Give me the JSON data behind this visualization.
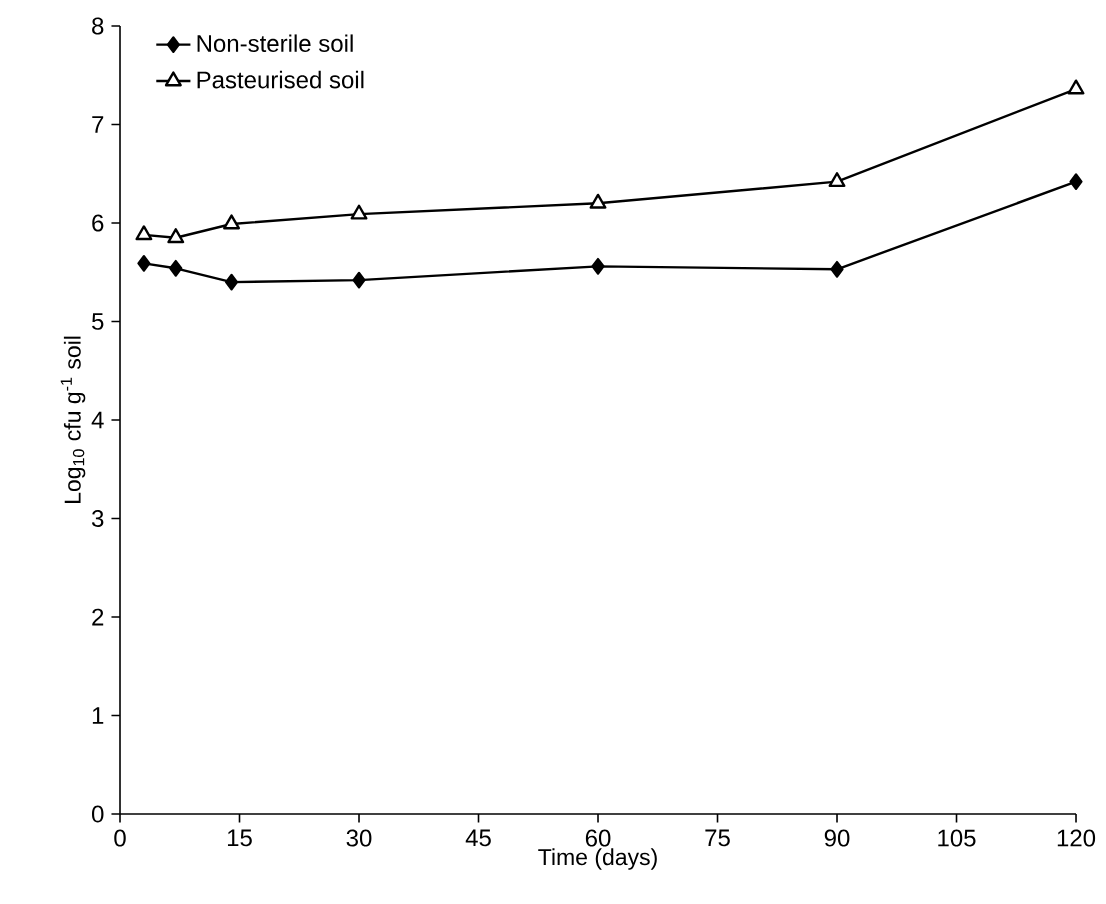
{
  "chart_data": {
    "type": "line",
    "xlabel": "Time (days)",
    "ylabel": "Log$_{10}$ cfu g$^{-1}$ soil",
    "xlim": [
      0,
      120
    ],
    "xticks": [
      0,
      15,
      30,
      45,
      60,
      75,
      90,
      105,
      120
    ],
    "ylim": [
      0,
      8
    ],
    "yticks": [
      0,
      1,
      2,
      3,
      4,
      5,
      6,
      7,
      8
    ],
    "legend": "top left",
    "grid": false,
    "series": [
      {
        "name": "Non-sterile soil",
        "color": "#000000",
        "marker": "diamond",
        "x": [
          3,
          7,
          14,
          30,
          60,
          90,
          120
        ],
        "values": [
          5.59,
          5.54,
          5.4,
          5.42,
          5.56,
          5.53,
          6.42
        ]
      },
      {
        "name": "Pasteurised soil",
        "color": "#000000",
        "marker": "triangle",
        "x": [
          3,
          7,
          14,
          30,
          60,
          90,
          120
        ],
        "values": [
          5.88,
          5.85,
          5.99,
          6.09,
          6.2,
          6.42,
          7.36
        ]
      }
    ]
  }
}
